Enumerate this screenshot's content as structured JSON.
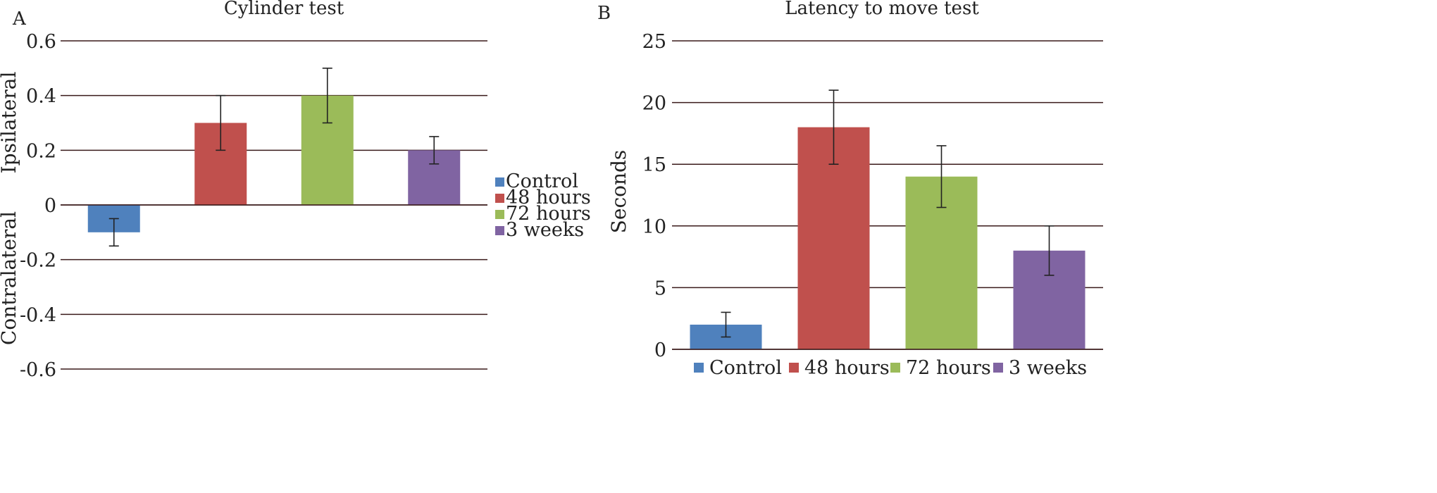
{
  "colors": {
    "control": "#4f81bd",
    "h48": "#c0504d",
    "h72": "#9bbb59",
    "w3": "#8064a2",
    "gridline": "#3a1a1a",
    "errorbar": "#222222"
  },
  "chart_data": [
    {
      "panel": "A",
      "type": "bar",
      "title": "Cylinder test",
      "ylabel_top": "Ipsilateral",
      "ylabel_bottom": "Contralateral",
      "ylim": [
        -0.6,
        0.6
      ],
      "yticks": [
        "0.6",
        "0.4",
        "0.2",
        "0",
        "-0.2",
        "-0.4",
        "-0.6"
      ],
      "grid": true,
      "legend_position": "right",
      "categories": [
        "Control",
        "48 hours",
        "72 hours",
        "3 weeks"
      ],
      "values": [
        -0.1,
        0.3,
        0.4,
        0.2
      ],
      "errors": [
        0.05,
        0.1,
        0.1,
        0.05
      ]
    },
    {
      "panel": "B",
      "type": "bar",
      "title": "Latency to move test",
      "ylabel": "Seconds",
      "ylim": [
        0,
        25
      ],
      "yticks": [
        "25",
        "20",
        "15",
        "10",
        "5",
        "0"
      ],
      "grid": true,
      "legend_position": "bottom",
      "categories": [
        "Control",
        "48 hours",
        "72 hours",
        "3 weeks"
      ],
      "values": [
        2,
        18,
        14,
        8
      ],
      "errors": [
        1,
        3,
        2.5,
        2
      ]
    }
  ]
}
